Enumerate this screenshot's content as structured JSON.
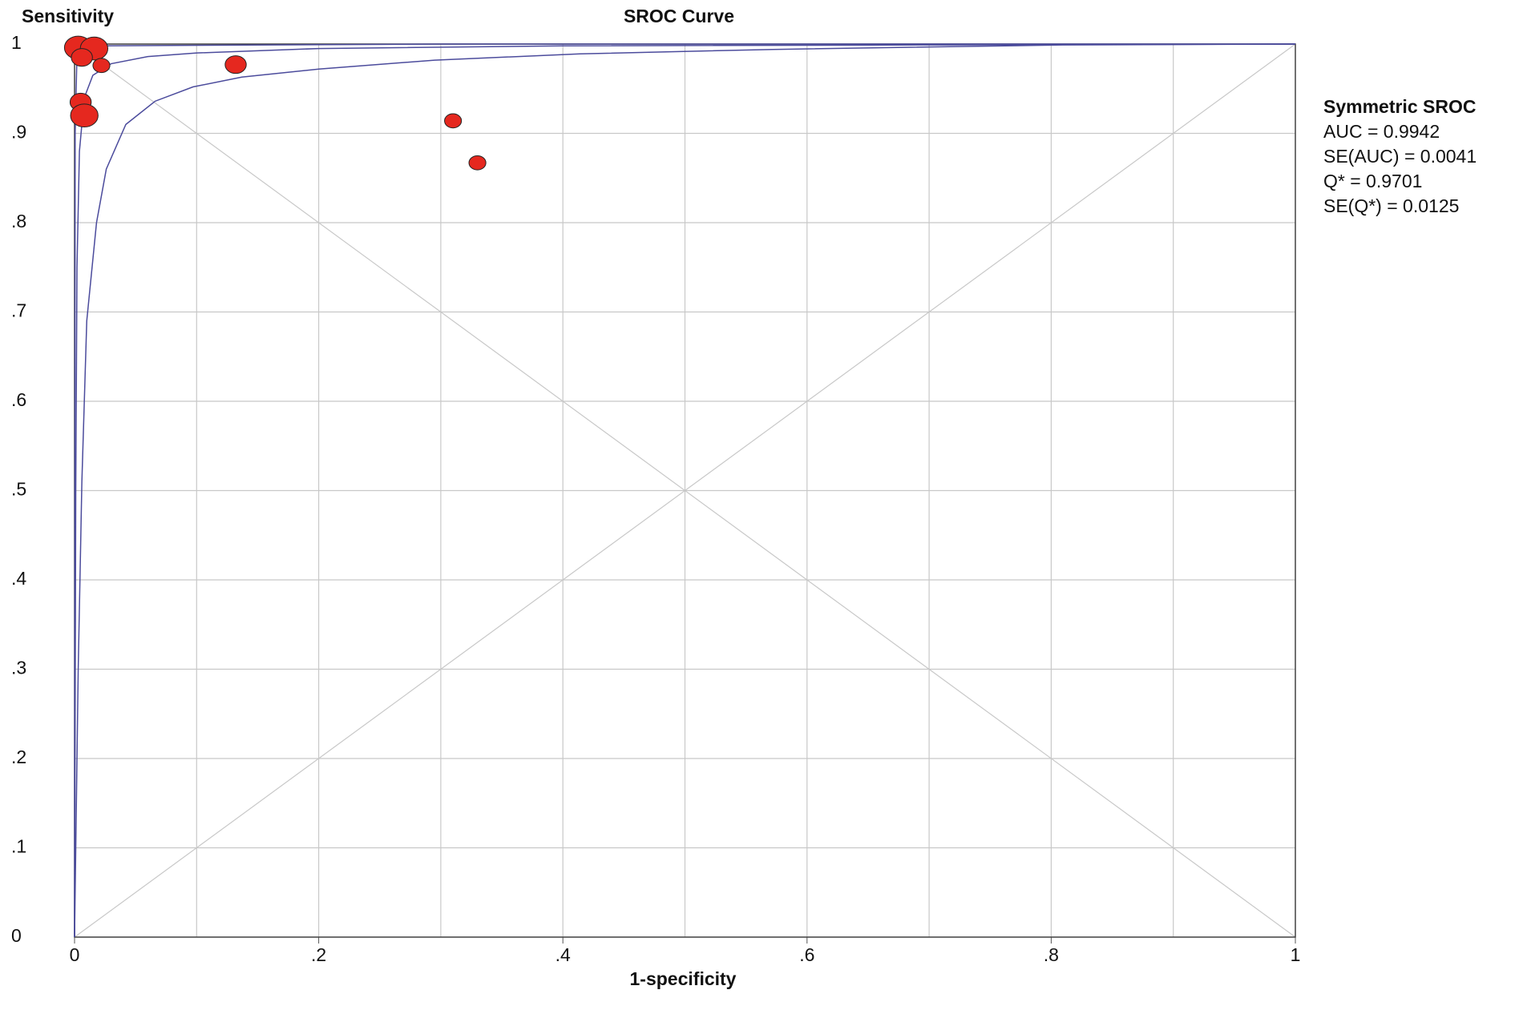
{
  "chart_data": {
    "type": "scatter",
    "title": "SROC Curve",
    "y_label": "Sensitivity",
    "x_label": "1-specificity",
    "xlim": [
      0,
      1
    ],
    "ylim": [
      0,
      1
    ],
    "xticks": [
      0,
      {
        "value": 0.2,
        "label": ".2"
      },
      {
        "value": 0.4,
        "label": ".4"
      },
      {
        "value": 0.6,
        "label": ".6"
      },
      {
        "value": 0.8,
        "label": ".8"
      },
      1
    ],
    "xminor_ticks": [
      0.1,
      0.3,
      0.5,
      0.7,
      0.9
    ],
    "yticks": [
      0,
      {
        "value": 0.1,
        "label": ".1"
      },
      {
        "value": 0.2,
        "label": ".2"
      },
      {
        "value": 0.3,
        "label": ".3"
      },
      {
        "value": 0.4,
        "label": ".4"
      },
      {
        "value": 0.5,
        "label": ".5"
      },
      {
        "value": 0.6,
        "label": ".6"
      },
      {
        "value": 0.7,
        "label": ".7"
      },
      {
        "value": 0.8,
        "label": ".8"
      },
      {
        "value": 0.9,
        "label": ".9"
      },
      1
    ],
    "grid": true,
    "point_color": "#e5281f",
    "curve_color": "#4b4b9c",
    "points": {
      "x": [
        0.003,
        0.016,
        0.006,
        0.022,
        0.132,
        0.005,
        0.008,
        0.31,
        0.33
      ],
      "y": [
        0.996,
        0.995,
        0.985,
        0.976,
        0.977,
        0.935,
        0.92,
        0.914,
        0.867
      ],
      "sizes": [
        13,
        13,
        10,
        8,
        10,
        10,
        13,
        8,
        8
      ]
    },
    "curves": [
      {
        "x": [
          0,
          0.0005,
          0.002,
          0.02,
          0.3,
          1
        ],
        "y": [
          0,
          0.9,
          0.99,
          0.998,
          1,
          1
        ]
      },
      {
        "x": [
          0,
          0.001,
          0.002,
          0.004,
          0.008,
          0.015,
          0.03,
          0.06,
          0.1,
          0.2,
          0.4,
          1
        ],
        "y": [
          0,
          0.5,
          0.75,
          0.88,
          0.94,
          0.965,
          0.978,
          0.986,
          0.99,
          0.995,
          0.998,
          1
        ]
      },
      {
        "x": [
          0,
          0.003,
          0.006,
          0.01,
          0.018,
          0.026,
          0.042,
          0.066,
          0.097,
          0.137,
          0.2,
          0.295,
          0.414,
          0.572,
          0.809,
          1
        ],
        "y": [
          0,
          0.3,
          0.51,
          0.69,
          0.8,
          0.86,
          0.91,
          0.936,
          0.952,
          0.963,
          0.972,
          0.982,
          0.989,
          0.994,
          0.999,
          1
        ]
      }
    ],
    "legend_title": "Symmetric SROC",
    "annotations": [
      "AUC = 0.9942",
      "SE(AUC) = 0.0041",
      "Q* = 0.9701",
      "SE(Q*) = 0.0125"
    ]
  }
}
